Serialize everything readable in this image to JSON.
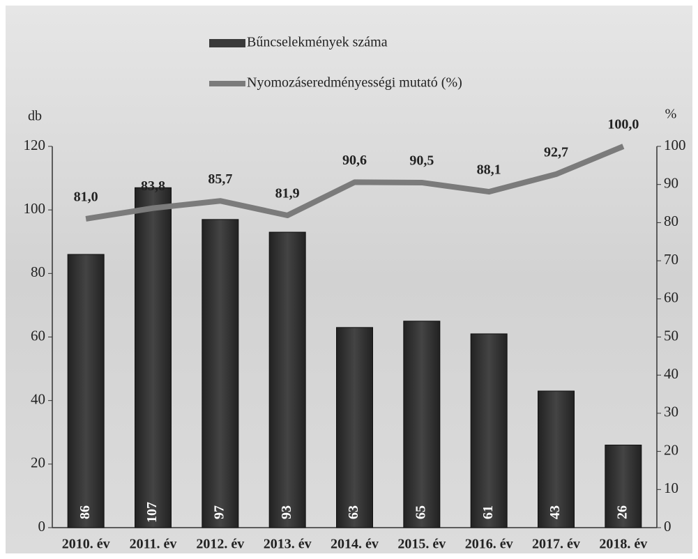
{
  "chart_data": {
    "type": "bar+line",
    "categories": [
      "2010. év",
      "2011. év",
      "2012. év",
      "2013. év",
      "2014. év",
      "2015. év",
      "2016. év",
      "2017. év",
      "2018. év"
    ],
    "series": [
      {
        "name": "Bűncselekmények száma",
        "color": "#3a3a3a",
        "type": "bar",
        "values": [
          86,
          107,
          97,
          93,
          63,
          65,
          61,
          43,
          26
        ]
      },
      {
        "name": "Nyomozáseredményességi mutató (%)",
        "color": "#7b7b7b",
        "type": "line",
        "axis": "y2",
        "values": [
          81.0,
          83.8,
          85.7,
          81.9,
          90.6,
          90.5,
          88.1,
          92.7,
          100.0
        ],
        "value_labels": [
          "81,0",
          "83,8",
          "85,7",
          "81,9",
          "90,6",
          "90,5",
          "88,1",
          "92,7",
          "100,0"
        ]
      }
    ],
    "ylabel": "db",
    "y2label": "%",
    "ylim": [
      0,
      120
    ],
    "yticks": [
      0,
      20,
      40,
      60,
      80,
      100,
      120
    ],
    "y2lim": [
      0,
      100
    ],
    "y2ticks": [
      0,
      10,
      20,
      30,
      40,
      50,
      60,
      70,
      80,
      90,
      100
    ],
    "legend": "top"
  }
}
